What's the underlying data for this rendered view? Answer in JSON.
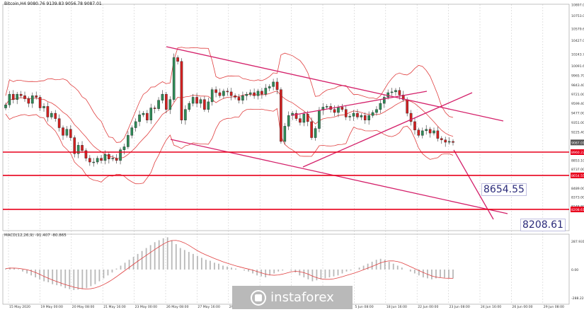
{
  "header": {
    "symbol": "Bitcoin,H4",
    "ohlc": "9080.76 9139.83 9056.78 9087.01"
  },
  "indicator_label": "MACD(12,26,9) -91.407 -80.865",
  "watermark": "instaforex",
  "callouts": {
    "target1": "8654.55",
    "target2": "8208.61"
  },
  "colors": {
    "up": "#2e8b57",
    "down": "#d42020",
    "band": "#e04040",
    "trend": "#d4206a",
    "level": "#e8001c",
    "grid": "#cfcfcf",
    "macd": "#b8b8b8",
    "signal": "#e04040",
    "text": "#333333"
  },
  "chart_data": {
    "type": "candlestick",
    "price_axis": {
      "min": 7930,
      "max": 10900,
      "ticks": [
        "10897.00",
        "10753.00",
        "10579.60",
        "10427.00",
        "10243.70",
        "10091.60",
        "9965.70",
        "9843.40",
        "9721.00",
        "9599.40",
        "9477.00",
        "9351.00",
        "9225.40",
        "9087.01",
        "8960.22",
        "8853.10",
        "8737.00",
        "8654.55",
        "8489.00",
        "8373.00",
        "8248.80",
        "8208.61"
      ],
      "labeled_levels": [
        "9087.01",
        "8960.22",
        "8654.55",
        "8208.61"
      ]
    },
    "time_ticks": [
      "15 May 2020",
      "19 May 00:00",
      "20 May 08:00",
      "21 May 16:00",
      "23 May 00:00",
      "26 May 08:00",
      "27 May 16:00",
      "29 May 00:00",
      "1 Jun 08:00",
      "2 Jun 16:00",
      "4 Jun 00:00",
      "5 Jun 08:00",
      "18 Jun 16:00",
      "22 Jun 00:00",
      "23 Jun 08:00",
      "24 Jun 16:00",
      "26 Jun 00:00",
      "29 Jun 08:00"
    ],
    "candles_close": [
      9580,
      9720,
      9650,
      9720,
      9700,
      9660,
      9600,
      9700,
      9680,
      9540,
      9560,
      9420,
      9470,
      9400,
      9280,
      9180,
      9260,
      9150,
      8940,
      9050,
      8980,
      8880,
      8830,
      8830,
      8880,
      8850,
      8930,
      8870,
      8880,
      8850,
      8990,
      9030,
      9180,
      9280,
      9360,
      9450,
      9470,
      9380,
      9540,
      9530,
      9640,
      9720,
      9520,
      9650,
      10200,
      10150,
      9380,
      9520,
      9600,
      9680,
      9600,
      9650,
      9520,
      9620,
      9780,
      9740,
      9700,
      9760,
      9750,
      9700,
      9680,
      9640,
      9700,
      9720,
      9740,
      9700,
      9760,
      9720,
      9800,
      9820,
      9880,
      9780,
      9100,
      9300,
      9440,
      9470,
      9400,
      9350,
      9460,
      9360,
      9150,
      9270,
      9510,
      9550,
      9560,
      9520,
      9480,
      9550,
      9520,
      9420,
      9430,
      9470,
      9420,
      9440,
      9380,
      9440,
      9480,
      9520,
      9600,
      9680,
      9740,
      9750,
      9770,
      9710,
      9650,
      9470,
      9360,
      9250,
      9180,
      9240,
      9260,
      9210,
      9240,
      9140,
      9120,
      9090,
      9100,
      9087
    ],
    "resistance_levels": [
      8960.22,
      8654.55,
      8208.61
    ],
    "macd_histogram": [
      10,
      20,
      15,
      5,
      -20,
      -40,
      -60,
      -80,
      -100,
      -120,
      -130,
      -150,
      -160,
      -170,
      -190,
      -200,
      -210,
      -205,
      -200,
      -190,
      -170,
      -150,
      -120,
      -90,
      -60,
      -30,
      10,
      40,
      70,
      100,
      130,
      160,
      190,
      220,
      250,
      280,
      300,
      320,
      330,
      300,
      260,
      220,
      200,
      180,
      160,
      140,
      120,
      100,
      90,
      70,
      60,
      40,
      30,
      20,
      10,
      0,
      -10,
      -20,
      -40,
      -60,
      -70,
      -80,
      -60,
      -40,
      -20,
      -10,
      0,
      -10,
      -30,
      -60,
      -80,
      -100,
      -120,
      -110,
      -100,
      -90,
      -80,
      -70,
      -60,
      -40,
      -20,
      -10,
      0,
      20,
      40,
      60,
      80,
      100,
      110,
      100,
      80,
      60,
      40,
      20,
      0,
      -20,
      -40,
      -60,
      -80,
      -90,
      -100,
      -90,
      -80,
      -85,
      -90,
      -91
    ],
    "macd_axis_ticks": [
      "287.931",
      "0.00",
      "-288.228"
    ]
  }
}
